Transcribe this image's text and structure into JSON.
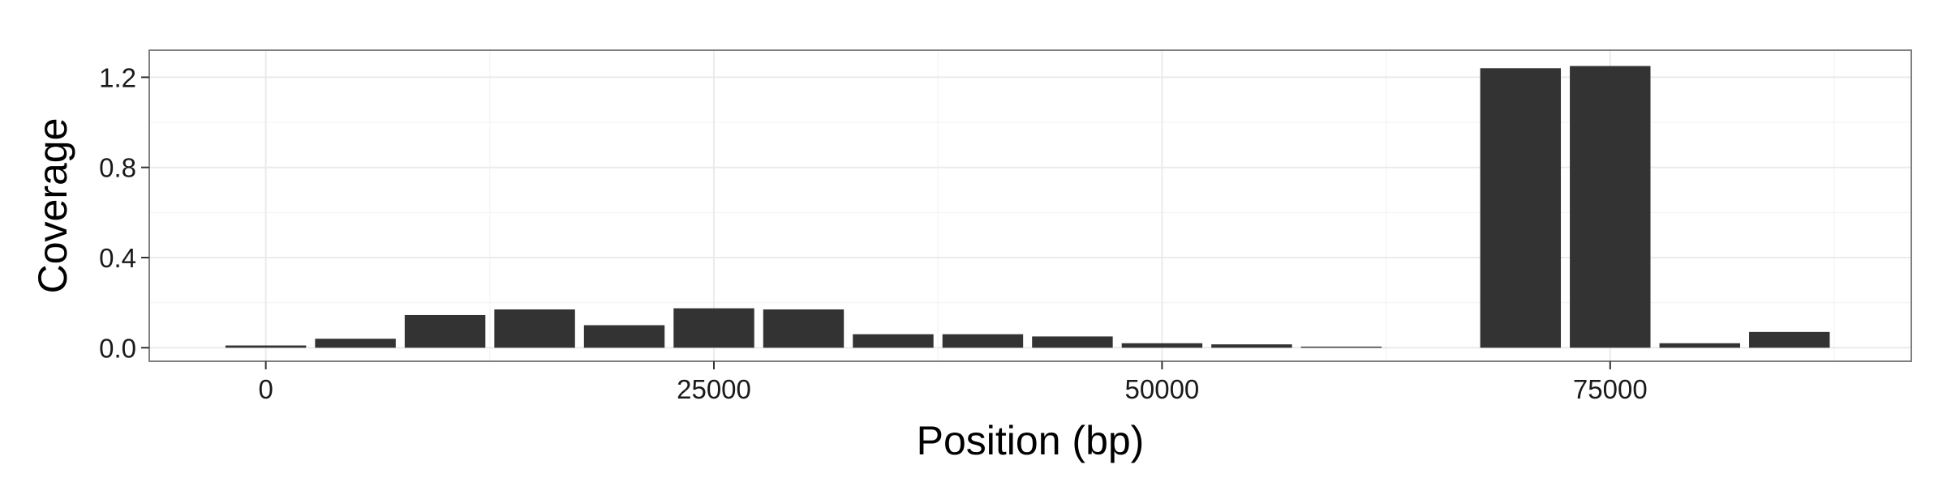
{
  "chart_data": {
    "type": "bar",
    "xlabel": "Position (bp)",
    "ylabel": "Coverage",
    "xlim": [
      -6500,
      91800
    ],
    "ylim": [
      -0.06,
      1.32
    ],
    "x_ticks": [
      0,
      25000,
      50000,
      75000
    ],
    "x_tick_labels": [
      "0",
      "25000",
      "50000",
      "75000"
    ],
    "y_ticks": [
      0.0,
      0.4,
      0.8,
      1.2
    ],
    "y_tick_labels": [
      "0.0",
      "0.4",
      "0.8",
      "1.2"
    ],
    "bar_width": 4500,
    "grid": true,
    "legend": "none",
    "bar_color": "#333333",
    "points": [
      {
        "x": 0,
        "y": 0.01
      },
      {
        "x": 5000,
        "y": 0.04
      },
      {
        "x": 10000,
        "y": 0.145
      },
      {
        "x": 15000,
        "y": 0.17
      },
      {
        "x": 20000,
        "y": 0.1
      },
      {
        "x": 25000,
        "y": 0.175
      },
      {
        "x": 30000,
        "y": 0.17
      },
      {
        "x": 35000,
        "y": 0.06
      },
      {
        "x": 40000,
        "y": 0.06
      },
      {
        "x": 45000,
        "y": 0.05
      },
      {
        "x": 50000,
        "y": 0.02
      },
      {
        "x": 55000,
        "y": 0.015
      },
      {
        "x": 60000,
        "y": 0.005
      },
      {
        "x": 70000,
        "y": 1.24
      },
      {
        "x": 75000,
        "y": 1.25
      },
      {
        "x": 80000,
        "y": 0.02
      },
      {
        "x": 85000,
        "y": 0.07
      }
    ]
  }
}
